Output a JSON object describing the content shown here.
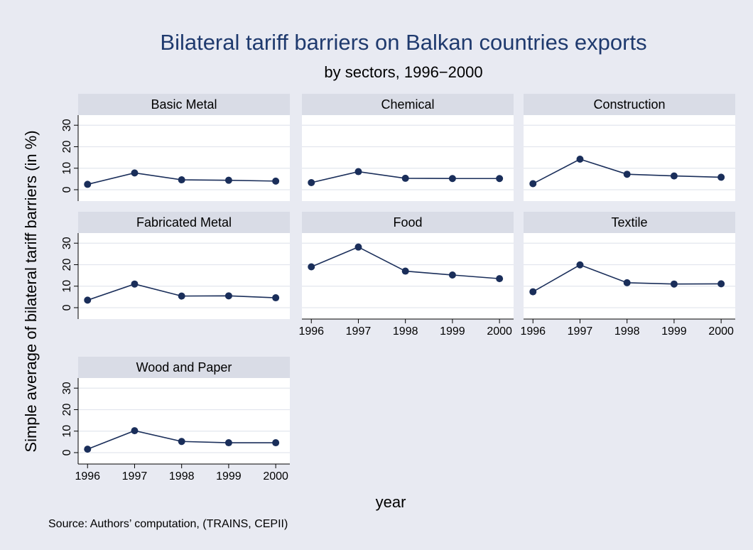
{
  "title": "Bilateral tariff barriers on Balkan countries exports",
  "subtitle": "by sectors, 1996−2000",
  "y_label": "Simple average of bilateral tariff barriers (in %)",
  "x_label": "year",
  "note": "Source: Authors’ computation, (TRAINS, CEPII)",
  "xlim": [
    1995.8,
    2000.3
  ],
  "xticks": [
    1996,
    1997,
    1998,
    1999,
    2000
  ],
  "ylim": [
    -5.3,
    34.7
  ],
  "yticks": [
    0,
    10,
    20,
    30
  ],
  "grid": true,
  "color": "#1a2e5a",
  "chart_data": [
    {
      "type": "line",
      "title": "Basic Metal",
      "x": [
        1996,
        1997,
        1998,
        1999,
        2000
      ],
      "values": [
        2.5,
        7.8,
        4.6,
        4.4,
        4.0
      ],
      "show_yticks": true,
      "show_xticks": false
    },
    {
      "type": "line",
      "title": "Chemical",
      "x": [
        1996,
        1997,
        1998,
        1999,
        2000
      ],
      "values": [
        3.3,
        8.4,
        5.3,
        5.2,
        5.2
      ],
      "show_yticks": false,
      "show_xticks": false
    },
    {
      "type": "line",
      "title": "Construction",
      "x": [
        1996,
        1997,
        1998,
        1999,
        2000
      ],
      "values": [
        2.8,
        14.2,
        7.2,
        6.4,
        5.8
      ],
      "show_yticks": false,
      "show_xticks": false
    },
    {
      "type": "line",
      "title": "Fabricated Metal",
      "x": [
        1996,
        1997,
        1998,
        1999,
        2000
      ],
      "values": [
        3.5,
        11.0,
        5.4,
        5.5,
        4.6
      ],
      "show_yticks": true,
      "show_xticks": false
    },
    {
      "type": "line",
      "title": "Food",
      "x": [
        1996,
        1997,
        1998,
        1999,
        2000
      ],
      "values": [
        19.0,
        28.2,
        17.0,
        15.2,
        13.5
      ],
      "show_yticks": false,
      "show_xticks": true
    },
    {
      "type": "line",
      "title": "Textile",
      "x": [
        1996,
        1997,
        1998,
        1999,
        2000
      ],
      "values": [
        7.4,
        19.9,
        11.6,
        11.0,
        11.1
      ],
      "show_yticks": false,
      "show_xticks": true
    },
    {
      "type": "line",
      "title": "Wood and Paper",
      "x": [
        1996,
        1997,
        1998,
        1999,
        2000
      ],
      "values": [
        1.6,
        10.2,
        5.2,
        4.6,
        4.6
      ],
      "show_yticks": true,
      "show_xticks": true
    }
  ]
}
